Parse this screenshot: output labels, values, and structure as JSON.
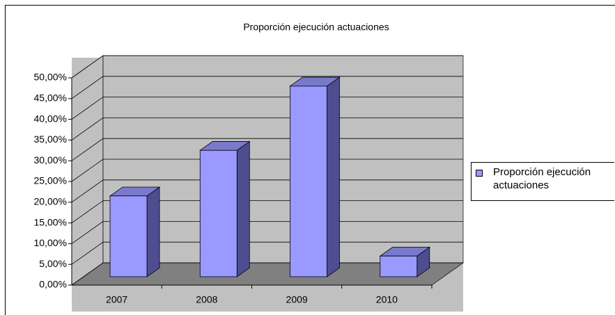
{
  "chart_data": {
    "type": "bar3d",
    "title": "Proporción ejecución actuaciones",
    "categories": [
      "2007",
      "2008",
      "2009",
      "2010"
    ],
    "series": [
      {
        "name": "Proporción ejecución actuaciones",
        "color": "#9999ff",
        "values": [
          19.5,
          30.5,
          46,
          5
        ]
      }
    ],
    "ylim": [
      0,
      50
    ],
    "yticks": [
      {
        "value": 0,
        "label": "0,00%"
      },
      {
        "value": 5,
        "label": "5,00%"
      },
      {
        "value": 10,
        "label": "10,00%"
      },
      {
        "value": 15,
        "label": "15,00%"
      },
      {
        "value": 20,
        "label": "20,00%"
      },
      {
        "value": 25,
        "label": "25,00%"
      },
      {
        "value": 30,
        "label": "30,00%"
      },
      {
        "value": 35,
        "label": "35,00%"
      },
      {
        "value": 40,
        "label": "40,00%"
      },
      {
        "value": 45,
        "label": "45,00%"
      },
      {
        "value": 50,
        "label": "50,00%"
      }
    ],
    "grid": true,
    "legend": "right"
  }
}
